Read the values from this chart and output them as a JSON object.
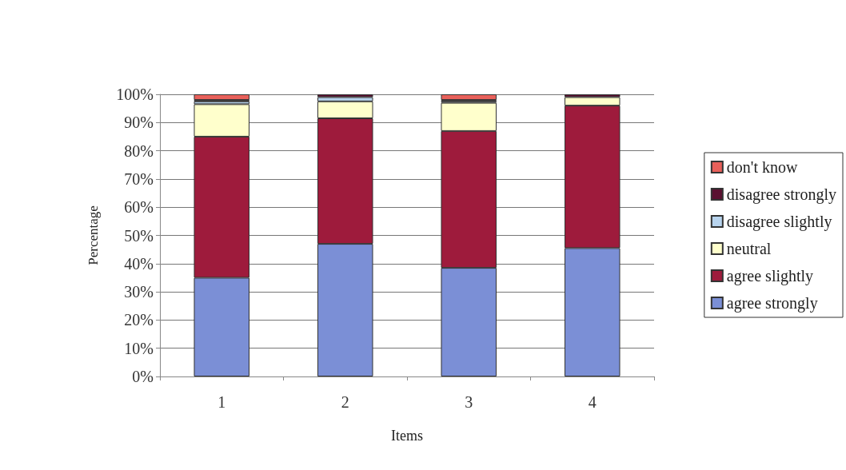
{
  "chart_data": {
    "type": "bar",
    "stacked": true,
    "xlabel": "Items",
    "ylabel": "Percentage",
    "categories": [
      "1",
      "2",
      "3",
      "4"
    ],
    "series": [
      {
        "name": "agree strongly",
        "color": "#7b8fd6",
        "values": [
          35,
          47,
          38.5,
          45.5
        ]
      },
      {
        "name": "agree slightly",
        "color": "#9e1b3c",
        "values": [
          50,
          44.5,
          48.5,
          50.5
        ]
      },
      {
        "name": "neutral",
        "color": "#ffffcc",
        "values": [
          11.5,
          6,
          10,
          3
        ]
      },
      {
        "name": "disagree slightly",
        "color": "#b8d4ee",
        "values": [
          1,
          1.5,
          0.5,
          0
        ]
      },
      {
        "name": "disagree strongly",
        "color": "#5a1030",
        "values": [
          0.5,
          1,
          0.5,
          1
        ]
      },
      {
        "name": "don't know",
        "color": "#e8605a",
        "values": [
          2,
          0,
          2,
          0
        ]
      }
    ],
    "ylim": [
      0,
      100
    ],
    "yticks": [
      {
        "value": 0,
        "label": "0%"
      },
      {
        "value": 10,
        "label": "10%"
      },
      {
        "value": 20,
        "label": "20%"
      },
      {
        "value": 30,
        "label": "30%"
      },
      {
        "value": 40,
        "label": "40%"
      },
      {
        "value": 50,
        "label": "50%"
      },
      {
        "value": 60,
        "label": "60%"
      },
      {
        "value": 70,
        "label": "70%"
      },
      {
        "value": 80,
        "label": "80%"
      },
      {
        "value": 90,
        "label": "90%"
      },
      {
        "value": 100,
        "label": "100%"
      }
    ],
    "grid": "y",
    "legend": "right"
  }
}
